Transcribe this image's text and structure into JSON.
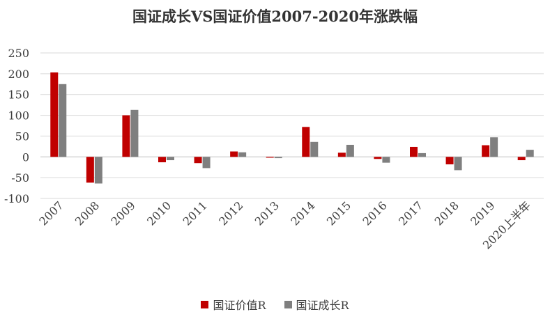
{
  "chart_data": {
    "type": "bar",
    "title": "国证成长VS国证价值2007-2020年涨跌幅",
    "categories": [
      "2007",
      "2008",
      "2009",
      "2010",
      "2011",
      "2012",
      "2013",
      "2014",
      "2015",
      "2016",
      "2017",
      "2018",
      "2019",
      "2020上半年"
    ],
    "series": [
      {
        "name": "国证价值R",
        "color": "#c00000",
        "values": [
          203,
          -62,
          100,
          -13,
          -15,
          13,
          -2,
          72,
          10,
          -5,
          24,
          -18,
          28,
          -8
        ]
      },
      {
        "name": "国证成长R",
        "color": "#7f7f7f",
        "values": [
          175,
          -64,
          113,
          -8,
          -27,
          11,
          -3,
          36,
          29,
          -14,
          9,
          -32,
          47,
          17
        ]
      }
    ],
    "ylim": [
      -100,
      250
    ],
    "yticks": [
      -100,
      -50,
      0,
      50,
      100,
      150,
      200,
      250
    ],
    "grid": true,
    "legend": "bottom",
    "xlabel": "",
    "ylabel": ""
  }
}
